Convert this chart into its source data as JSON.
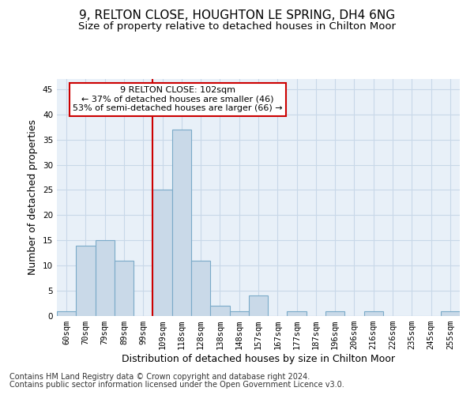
{
  "title1": "9, RELTON CLOSE, HOUGHTON LE SPRING, DH4 6NG",
  "title2": "Size of property relative to detached houses in Chilton Moor",
  "xlabel": "Distribution of detached houses by size in Chilton Moor",
  "ylabel": "Number of detached properties",
  "footnote1": "Contains HM Land Registry data © Crown copyright and database right 2024.",
  "footnote2": "Contains public sector information licensed under the Open Government Licence v3.0.",
  "annotation_line1": "9 RELTON CLOSE: 102sqm",
  "annotation_line2": "← 37% of detached houses are smaller (46)",
  "annotation_line3": "53% of semi-detached houses are larger (66) →",
  "bar_labels": [
    "60sqm",
    "70sqm",
    "79sqm",
    "89sqm",
    "99sqm",
    "109sqm",
    "118sqm",
    "128sqm",
    "138sqm",
    "148sqm",
    "157sqm",
    "167sqm",
    "177sqm",
    "187sqm",
    "196sqm",
    "206sqm",
    "216sqm",
    "226sqm",
    "235sqm",
    "245sqm",
    "255sqm"
  ],
  "bar_values": [
    1,
    14,
    15,
    11,
    0,
    25,
    37,
    11,
    2,
    1,
    4,
    0,
    1,
    0,
    1,
    0,
    1,
    0,
    0,
    0,
    1
  ],
  "bar_color": "#c9d9e8",
  "bar_edgecolor": "#7aaac8",
  "ylim": [
    0,
    47
  ],
  "yticks": [
    0,
    5,
    10,
    15,
    20,
    25,
    30,
    35,
    40,
    45
  ],
  "vline_color": "#cc0000",
  "vline_x": 4.5,
  "annotation_box_color": "#cc0000",
  "grid_color": "#c8d8e8",
  "background_color": "#e8f0f8",
  "title_fontsize": 11,
  "subtitle_fontsize": 9.5,
  "axis_label_fontsize": 9,
  "tick_fontsize": 7.5,
  "footnote_fontsize": 7,
  "annotation_fontsize": 8
}
